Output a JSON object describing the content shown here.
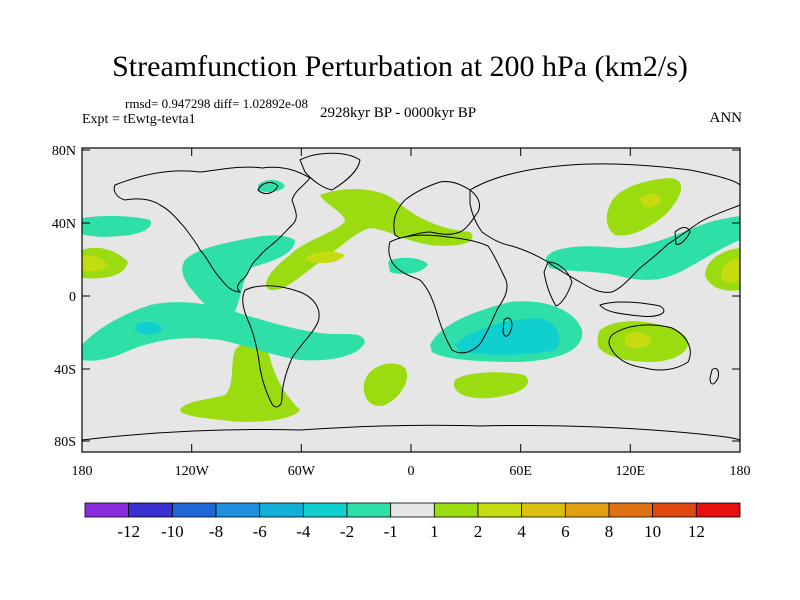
{
  "title": "Streamfunction Perturbation at 200 hPa (km2/s)",
  "stats_text": "rmsd= 0.947298 diff= 1.02892e-08",
  "experiment": "Expt = tEwtg-tevta1",
  "period": "2928kyr BP - 0000kyr BP",
  "season": "ANN",
  "lat_ticks": [
    "80N",
    "40N",
    "0",
    "40S",
    "80S"
  ],
  "lon_ticks": [
    "180",
    "120W",
    "60W",
    "0",
    "60E",
    "120E",
    "180"
  ],
  "colorbar": {
    "colors": [
      "#8a2be2",
      "#3a2fd0",
      "#1f66d6",
      "#1e90e0",
      "#12b0d8",
      "#10cfcf",
      "#2ee0a8",
      "#e6e6e6",
      "#9bdc10",
      "#c5dc10",
      "#dcc010",
      "#e0a010",
      "#e07010",
      "#e04810",
      "#e61010"
    ],
    "labels": [
      "-12",
      "-10",
      "-8",
      "-6",
      "-4",
      "-2",
      "-1",
      "1",
      "2",
      "4",
      "6",
      "8",
      "10",
      "12"
    ]
  },
  "colors": {
    "land_bg": "#e6e6e6",
    "positive_1": "#9bdc10",
    "positive_2": "#c5dc10",
    "negative_1": "#2ee0a8",
    "negative_2": "#10cfcf"
  }
}
